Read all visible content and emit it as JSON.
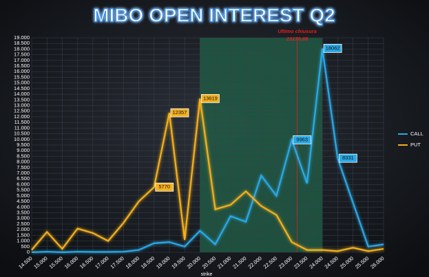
{
  "chart_data": {
    "type": "line",
    "title": "MIBO OPEN INTEREST Q2",
    "x_label": "strike",
    "x": [
      14500,
      15000,
      15500,
      16000,
      16500,
      17000,
      17500,
      18000,
      18500,
      19000,
      19500,
      20000,
      20500,
      21000,
      21500,
      22000,
      22500,
      23000,
      23500,
      24000,
      24500,
      25000,
      25500,
      26000
    ],
    "xlim": [
      14500,
      26000
    ],
    "xticks": [
      {
        "value": 14500,
        "label": "14.500"
      },
      {
        "value": 15000,
        "label": "15.000"
      },
      {
        "value": 15500,
        "label": "15.500"
      },
      {
        "value": 16000,
        "label": "16.000"
      },
      {
        "value": 16500,
        "label": "16.500"
      },
      {
        "value": 17000,
        "label": "17.000"
      },
      {
        "value": 17500,
        "label": "17.500"
      },
      {
        "value": 18000,
        "label": "18.000"
      },
      {
        "value": 18500,
        "label": "18.500"
      },
      {
        "value": 19000,
        "label": "19.000"
      },
      {
        "value": 19500,
        "label": "19.500"
      },
      {
        "value": 20000,
        "label": "20.000"
      },
      {
        "value": 20500,
        "label": "20.500"
      },
      {
        "value": 21000,
        "label": "21.000"
      },
      {
        "value": 21500,
        "label": "21.500"
      },
      {
        "value": 22000,
        "label": "22.000"
      },
      {
        "value": 22500,
        "label": "22.500"
      },
      {
        "value": 23000,
        "label": "23.000"
      },
      {
        "value": 23500,
        "label": "23.500"
      },
      {
        "value": 24000,
        "label": "24.000"
      },
      {
        "value": 24500,
        "label": "24.500"
      },
      {
        "value": 25000,
        "label": "25.000"
      },
      {
        "value": 25500,
        "label": "25.500"
      },
      {
        "value": 26000,
        "label": "26.000"
      }
    ],
    "ylim": [
      0,
      19000
    ],
    "yticks": [
      0,
      500,
      {
        "value": 1000,
        "label": "1.000"
      },
      {
        "value": 1500,
        "label": "1.500"
      },
      {
        "value": 2000,
        "label": "2.000"
      },
      {
        "value": 2500,
        "label": "2.500"
      },
      {
        "value": 3000,
        "label": "3.000"
      },
      {
        "value": 3500,
        "label": "3.500"
      },
      {
        "value": 4000,
        "label": "4.000"
      },
      {
        "value": 4500,
        "label": "4.500"
      },
      {
        "value": 5000,
        "label": "5.000"
      },
      {
        "value": 5500,
        "label": "5.500"
      },
      {
        "value": 6000,
        "label": "6.000"
      },
      {
        "value": 6500,
        "label": "6.500"
      },
      {
        "value": 7000,
        "label": "7.000"
      },
      {
        "value": 7500,
        "label": "7.500"
      },
      {
        "value": 8000,
        "label": "8.000"
      },
      {
        "value": 8500,
        "label": "8.500"
      },
      {
        "value": 9000,
        "label": "9.000"
      },
      {
        "value": 9500,
        "label": "9.500"
      },
      {
        "value": 10000,
        "label": "10.000"
      },
      {
        "value": 10500,
        "label": "10.500"
      },
      {
        "value": 11000,
        "label": "11.000"
      },
      {
        "value": 11500,
        "label": "11.500"
      },
      {
        "value": 12000,
        "label": "12.000"
      },
      {
        "value": 12500,
        "label": "12.500"
      },
      {
        "value": 13000,
        "label": "13.000"
      },
      {
        "value": 13500,
        "label": "13.500"
      },
      {
        "value": 14000,
        "label": "14.000"
      },
      {
        "value": 14500,
        "label": "14.500"
      },
      {
        "value": 15000,
        "label": "15.000"
      },
      {
        "value": 15500,
        "label": "15.500"
      },
      {
        "value": 16000,
        "label": "16.000"
      },
      {
        "value": 16500,
        "label": "16.500"
      },
      {
        "value": 17000,
        "label": "17.000"
      },
      {
        "value": 17500,
        "label": "17.500"
      },
      {
        "value": 18000,
        "label": "18.000"
      },
      {
        "value": 18500,
        "label": "18.500"
      },
      {
        "value": 19000,
        "label": "19.000"
      }
    ],
    "grid": true,
    "legend": "right",
    "highlight": {
      "range": [
        20000,
        24000
      ],
      "color": "#1f5e45"
    },
    "annotation": {
      "text": "Ultimo chiusura",
      "value": 23176.68,
      "label": "23176,68",
      "color": "#e02020"
    },
    "series": [
      {
        "name": "CALL",
        "color": "#2aa9e6",
        "values": [
          0,
          50,
          0,
          50,
          30,
          30,
          50,
          200,
          800,
          900,
          500,
          1900,
          700,
          3200,
          2700,
          6800,
          5000,
          9963,
          6100,
          18062,
          8331,
          4400,
          500,
          700
        ],
        "labeled": [
          17,
          19,
          20
        ]
      },
      {
        "name": "PUT",
        "color": "#f5b11f",
        "values": [
          200,
          1800,
          300,
          2100,
          1700,
          1000,
          2600,
          4500,
          5770,
          12357,
          1100,
          13619,
          3800,
          4200,
          5400,
          4100,
          3300,
          900,
          200,
          200,
          100,
          400,
          100,
          300
        ],
        "labeled": [
          8,
          9,
          11
        ]
      }
    ]
  }
}
